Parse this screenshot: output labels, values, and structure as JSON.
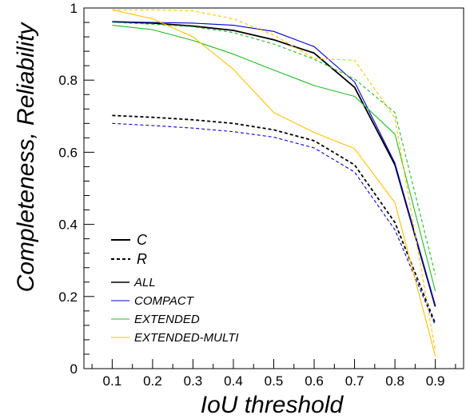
{
  "chart_data": {
    "type": "line",
    "title": "",
    "xlabel": "IoU threshold",
    "ylabel": "Completeness, Reliability",
    "xlim": [
      0.03,
      0.97
    ],
    "ylim": [
      0,
      1.0
    ],
    "x": [
      0.1,
      0.2,
      0.3,
      0.4,
      0.5,
      0.6,
      0.7,
      0.8,
      0.9
    ],
    "x_ticks": [
      "0.1",
      "0.2",
      "0.3",
      "0.4",
      "0.5",
      "0.6",
      "0.7",
      "0.8",
      "0.9"
    ],
    "y_ticks": [
      "0",
      "0.2",
      "0.4",
      "0.6",
      "0.8",
      "1"
    ],
    "y_tick_values": [
      0,
      0.2,
      0.4,
      0.6,
      0.8,
      1.0
    ],
    "grid": false,
    "legend_placement": "bottom-left",
    "style_legend": [
      {
        "label": "C",
        "dash": "solid"
      },
      {
        "label": "R",
        "dash": "dashed"
      }
    ],
    "class_legend": [
      {
        "label": "ALL",
        "color": "#000000"
      },
      {
        "label": "COMPACT",
        "color": "#0000cc"
      },
      {
        "label": "EXTENDED",
        "color": "#22bb22"
      },
      {
        "label": "EXTENDED-MULTI",
        "color": "#ffc000"
      }
    ],
    "series": [
      {
        "class": "ALL",
        "metric": "C",
        "color": "#000000",
        "dash": "solid",
        "values": [
          0.962,
          0.958,
          0.95,
          0.938,
          0.912,
          0.875,
          0.78,
          0.565,
          0.172
        ]
      },
      {
        "class": "ALL",
        "metric": "R",
        "color": "#000000",
        "dash": "dashed",
        "values": [
          0.702,
          0.697,
          0.69,
          0.68,
          0.662,
          0.632,
          0.565,
          0.405,
          0.125
        ]
      },
      {
        "class": "COMPACT",
        "metric": "C",
        "color": "#0000cc",
        "dash": "solid",
        "values": [
          0.962,
          0.96,
          0.958,
          0.952,
          0.935,
          0.893,
          0.795,
          0.57,
          0.175
        ]
      },
      {
        "class": "COMPACT",
        "metric": "R",
        "color": "#0000cc",
        "dash": "dashed",
        "values": [
          0.68,
          0.674,
          0.667,
          0.657,
          0.642,
          0.612,
          0.545,
          0.385,
          0.12
        ]
      },
      {
        "class": "EXTENDED",
        "metric": "C",
        "color": "#22bb22",
        "dash": "solid",
        "values": [
          0.952,
          0.94,
          0.91,
          0.872,
          0.828,
          0.785,
          0.755,
          0.65,
          0.215
        ]
      },
      {
        "class": "EXTENDED",
        "metric": "R",
        "color": "#22bb22",
        "dash": "dashed",
        "values": [
          0.96,
          0.955,
          0.948,
          0.932,
          0.9,
          0.858,
          0.803,
          0.71,
          0.26
        ]
      },
      {
        "class": "EXTENDED-MULTI",
        "metric": "C",
        "color": "#ffc000",
        "dash": "solid",
        "values": [
          0.995,
          0.97,
          0.92,
          0.83,
          0.71,
          0.655,
          0.61,
          0.46,
          0.035
        ]
      },
      {
        "class": "EXTENDED-MULTI",
        "metric": "R",
        "color": "#ffc000",
        "dash": "dashed",
        "values": [
          0.995,
          0.995,
          0.992,
          0.97,
          0.925,
          0.86,
          0.855,
          0.695,
          0.05
        ]
      }
    ]
  }
}
